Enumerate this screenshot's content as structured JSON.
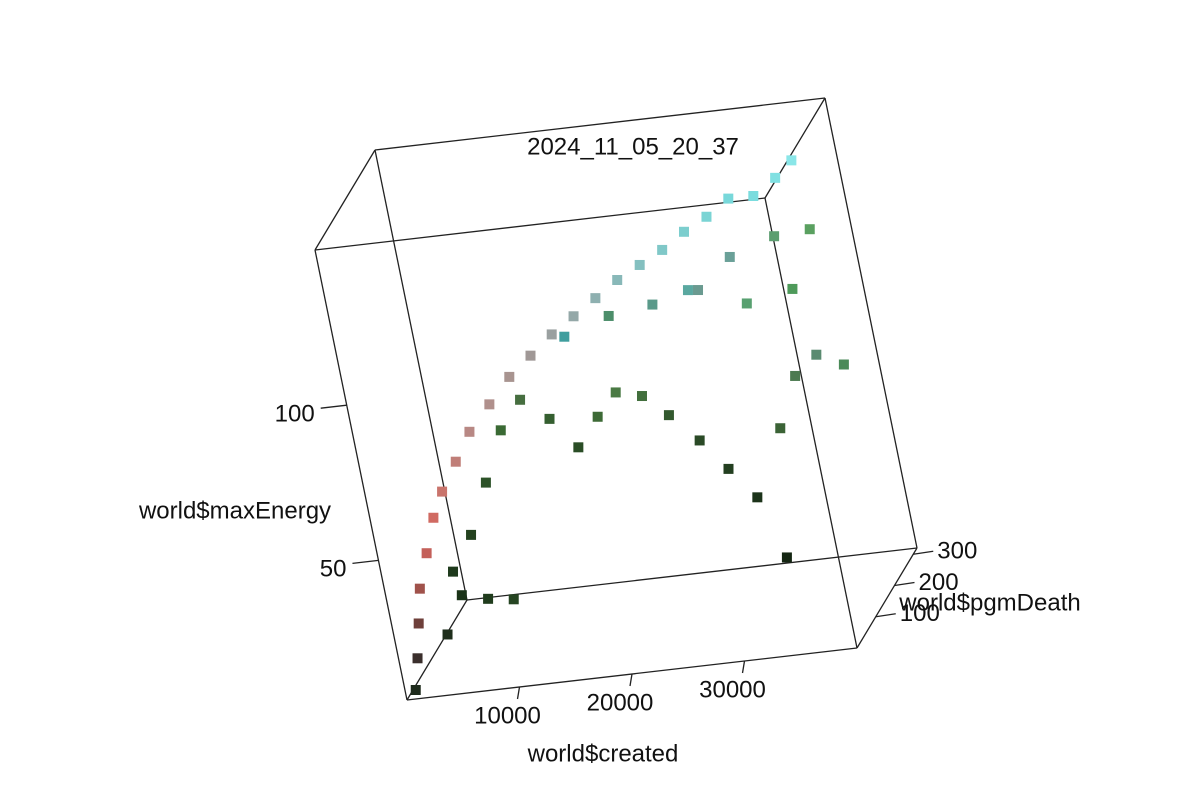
{
  "chart_data": {
    "type": "scatter3d",
    "title": "2024_11_05_20_37",
    "xlabel": "world$created",
    "ylabel": "world$pgmDeath",
    "zlabel": "world$maxEnergy",
    "xlim": [
      0,
      40000
    ],
    "ylim": [
      0,
      320
    ],
    "zlim": [
      5,
      150
    ],
    "xticks": [
      10000,
      20000,
      30000
    ],
    "yticks": [
      100,
      200,
      300
    ],
    "zticks": [
      50,
      100
    ],
    "points": {
      "x": [
        500,
        1000,
        1500,
        2000,
        3000,
        4000,
        5000,
        6500,
        8000,
        10000,
        12000,
        14000,
        16000,
        18000,
        20000,
        22000,
        24000,
        26000,
        28000,
        30000,
        32000,
        34000,
        36000,
        37500,
        26000,
        30000,
        34000,
        37000,
        3000,
        5000,
        7000,
        9000,
        11000,
        13000,
        15000,
        17000,
        19000,
        21000,
        23000,
        25000,
        27000,
        29000,
        30500,
        32000,
        34000,
        36000,
        38000,
        14000,
        18000,
        22000,
        26000,
        30000,
        34000,
        4000,
        6000,
        8000,
        2500
      ],
      "y": [
        20,
        30,
        40,
        50,
        60,
        70,
        80,
        90,
        100,
        110,
        120,
        130,
        140,
        150,
        160,
        170,
        180,
        190,
        200,
        210,
        220,
        230,
        240,
        250,
        260,
        270,
        280,
        290,
        150,
        160,
        170,
        180,
        190,
        200,
        200,
        210,
        210,
        220,
        220,
        230,
        230,
        230,
        230,
        240,
        250,
        260,
        270,
        280,
        290,
        290,
        300,
        300,
        310,
        120,
        130,
        140,
        100
      ],
      "z": [
        6,
        15,
        25,
        35,
        45,
        55,
        62,
        70,
        78,
        85,
        92,
        97,
        102,
        106,
        110,
        114,
        117,
        120,
        124,
        127,
        131,
        130,
        134,
        138,
        100,
        108,
        112,
        112,
        30,
        40,
        55,
        70,
        78,
        70,
        60,
        68,
        75,
        72,
        65,
        55,
        45,
        35,
        15,
        55,
        70,
        75,
        70,
        88,
        92,
        94,
        96,
        90,
        92,
        25,
        22,
        20,
        15
      ],
      "colors": [
        "#1d2a1b",
        "#3a2f2c",
        "#6e3f3a",
        "#a0524b",
        "#c4605a",
        "#d06a62",
        "#c9746c",
        "#c07e78",
        "#b88884",
        "#b0908c",
        "#a89490",
        "#a09896",
        "#9aa0a0",
        "#94a8a8",
        "#8eb0b0",
        "#88b8b8",
        "#84c0c0",
        "#80c8c8",
        "#7ccece",
        "#7ad4d4",
        "#78d8da",
        "#7adcde",
        "#80e0e2",
        "#8ae6e8",
        "#5aa8a0",
        "#6aa098",
        "#5c9e70",
        "#5aa060",
        "#1e3a1c",
        "#24421f",
        "#2c5228",
        "#3a6a34",
        "#466e40",
        "#355f30",
        "#2a4d26",
        "#3d6a36",
        "#4a7a44",
        "#426f3d",
        "#33592e",
        "#2a4a26",
        "#233f20",
        "#1c331a",
        "#142612",
        "#3b6336",
        "#4c7a50",
        "#5a8a70",
        "#4a8a58",
        "#3f9e9e",
        "#4c8e6a",
        "#5a9a8a",
        "#6a9a90",
        "#58a070",
        "#4e9a5a",
        "#1a3318",
        "#203c1d",
        "#264522",
        "#1e2e1c"
      ]
    }
  }
}
